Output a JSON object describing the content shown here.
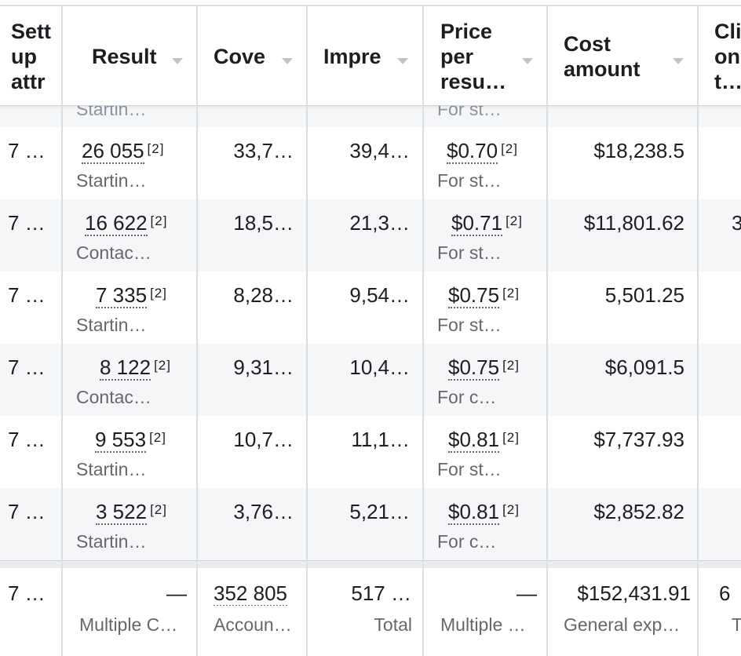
{
  "columns": [
    {
      "key": "setup",
      "label": "Sett up attr"
    },
    {
      "key": "result",
      "label": "Result"
    },
    {
      "key": "coverage",
      "label": "Cove"
    },
    {
      "key": "impressions",
      "label": "Impre"
    },
    {
      "key": "price",
      "label": "Price per resu…"
    },
    {
      "key": "cost",
      "label": "Cost amount"
    },
    {
      "key": "clicks",
      "label": "Cli on t…"
    }
  ],
  "partial_row": {
    "result_sub": "Startin…",
    "price_sub": "For st…"
  },
  "rows": [
    {
      "setup": "7 …",
      "result": "26 055",
      "result_ref": "[2]",
      "result_sub": "Startin…",
      "coverage": "33,7…",
      "impressions": "39,4…",
      "price": "$0.70",
      "price_ref": "[2]",
      "price_sub": "For st…",
      "cost": "$18,238.5",
      "clicks": ""
    },
    {
      "setup": "7 …",
      "result": "16 622",
      "result_ref": "[2]",
      "result_sub": "Contac…",
      "coverage": "18,5…",
      "impressions": "21,3…",
      "price": "$0.71",
      "price_ref": "[2]",
      "price_sub": "For st…",
      "cost": "$11,801.62",
      "clicks": "3"
    },
    {
      "setup": "7 …",
      "result": "7 335",
      "result_ref": "[2]",
      "result_sub": "Startin…",
      "coverage": "8,28…",
      "impressions": "9,54…",
      "price": "$0.75",
      "price_ref": "[2]",
      "price_sub": "For st…",
      "cost": "5,501.25",
      "clicks": ""
    },
    {
      "setup": "7 …",
      "result": "8 122",
      "result_ref": "[2]",
      "result_sub": "Contac…",
      "coverage": "9,31…",
      "impressions": "10,4…",
      "price": "$0.75",
      "price_ref": "[2]",
      "price_sub": "For c…",
      "cost": "$6,091.5",
      "clicks": ""
    },
    {
      "setup": "7 …",
      "result": "9 553",
      "result_ref": "[2]",
      "result_sub": "Startin…",
      "coverage": "10,7…",
      "impressions": "11,1…",
      "price": "$0.81",
      "price_ref": "[2]",
      "price_sub": "For st…",
      "cost": "$7,737.93",
      "clicks": ""
    },
    {
      "setup": "7 …",
      "result": "3 522",
      "result_ref": "[2]",
      "result_sub": "Startin…",
      "coverage": "3,76…",
      "impressions": "5,21…",
      "price": "$0.81",
      "price_ref": "[2]",
      "price_sub": "For c…",
      "cost": "$2,852.82",
      "clicks": ""
    }
  ],
  "total": {
    "setup": "7 …",
    "result": "—",
    "result_sub": "Multiple C…",
    "coverage": "352 805",
    "coverage_sub": "Accoun…",
    "impressions": "517 …",
    "impressions_sub": "Total",
    "price": "—",
    "price_sub": "Multiple …",
    "cost": "$152,431.91",
    "cost_sub": "General exp…",
    "clicks": "6",
    "clicks_sub": "T"
  }
}
